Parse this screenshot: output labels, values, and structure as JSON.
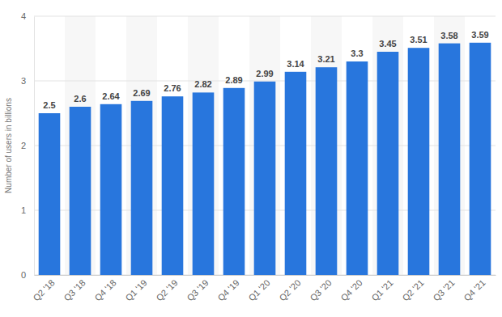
{
  "chart_data": {
    "type": "bar",
    "y_label": "Number of users in billions",
    "categories": [
      "Q2 '18",
      "Q3 '18",
      "Q4 '18",
      "Q1 '19",
      "Q2 '19",
      "Q3 '19",
      "Q4 '19",
      "Q1 '20",
      "Q2 '20",
      "Q3 '20",
      "Q4 '20",
      "Q1 '21",
      "Q2 '21",
      "Q3 '21",
      "Q4 '21"
    ],
    "values": [
      2.5,
      2.6,
      2.64,
      2.69,
      2.76,
      2.82,
      2.89,
      2.99,
      3.14,
      3.21,
      3.3,
      3.45,
      3.51,
      3.58,
      3.59
    ],
    "color": "#2876dd",
    "ylim": [
      0,
      4
    ],
    "yticks": [
      0,
      1,
      2,
      3,
      4
    ],
    "grid": true,
    "data_labels": true
  }
}
